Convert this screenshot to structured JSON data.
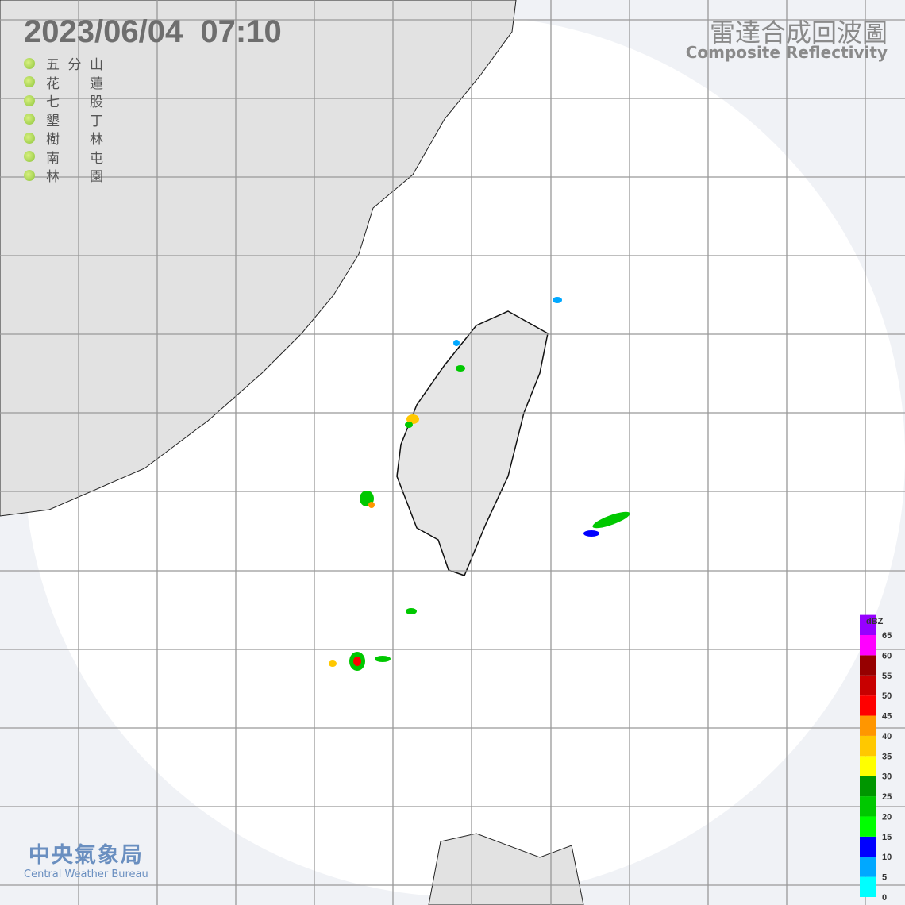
{
  "header": {
    "timestamp": "2023/06/04  07:10",
    "title_zh": "雷達合成回波圖",
    "title_en": "Composite Reflectivity"
  },
  "stations": [
    "五 分 山",
    "花 蓮",
    "七 股",
    "墾 丁",
    "樹 林",
    "南 屯",
    "林 園"
  ],
  "legend": {
    "unit": "dBZ",
    "ticks": [
      0,
      5,
      10,
      15,
      20,
      25,
      30,
      35,
      40,
      45,
      50,
      55,
      60,
      65
    ],
    "colors": [
      "#00ffff",
      "#00a8ff",
      "#0000ff",
      "#00ff00",
      "#00c800",
      "#009600",
      "#ffff00",
      "#ffc800",
      "#ff9600",
      "#ff0000",
      "#c80000",
      "#960000",
      "#ff00ff",
      "#9600ff"
    ]
  },
  "logo": {
    "name_zh": "中央氣象局",
    "name_en": "Central Weather Bureau"
  }
}
